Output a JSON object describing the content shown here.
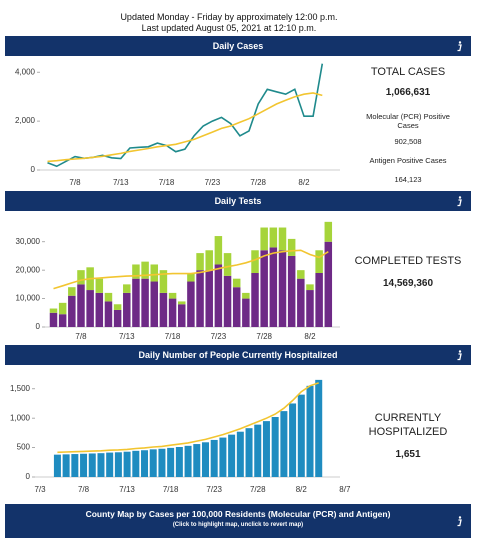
{
  "header": {
    "schedule": "Updated Monday - Friday by approximately 12:00 p.m.",
    "last_updated": "Last updated August 05, 2021 at 12:10 p.m."
  },
  "chart_data": [
    {
      "type": "line",
      "title": "Daily Cases",
      "categories": [
        null,
        null,
        null,
        "7/8",
        null,
        null,
        null,
        null,
        "7/13",
        null,
        null,
        null,
        null,
        "7/18",
        null,
        null,
        null,
        null,
        "7/23",
        null,
        null,
        null,
        null,
        "7/28",
        null,
        null,
        null,
        null,
        "8/2",
        null,
        null
      ],
      "series": [
        {
          "color": "#1f8a8c",
          "values": [
            300,
            150,
            350,
            550,
            480,
            520,
            600,
            500,
            470,
            900,
            930,
            950,
            1100,
            1000,
            750,
            850,
            1400,
            1800,
            2000,
            2150,
            1900,
            1400,
            1600,
            2700,
            3300,
            3200,
            3100,
            3300,
            2200,
            2200,
            4350
          ]
        },
        {
          "color": "#f2c530",
          "values": [
            350,
            380,
            420,
            450,
            480,
            520,
            560,
            620,
            680,
            760,
            820,
            880,
            950,
            1000,
            1050,
            1150,
            1250,
            1400,
            1550,
            1700,
            1800,
            1950,
            2100,
            2300,
            2500,
            2700,
            2850,
            3000,
            3100,
            3150,
            3050
          ]
        }
      ],
      "ylim": [
        0,
        4500
      ],
      "yticks": [
        0,
        {
          "value": 2000,
          "label": "2,000"
        },
        {
          "value": 4000,
          "label": "4,000"
        }
      ],
      "panel": {
        "heading": "TOTAL CASES",
        "total": "1,066,631",
        "items": [
          {
            "label": "Molecular (PCR) Positive Cases",
            "value": "902,508"
          },
          {
            "label": "Antigen Positive Cases",
            "value": "164,123"
          }
        ]
      }
    },
    {
      "type": "bar",
      "stacked": true,
      "title": "Daily Tests",
      "categories": [
        null,
        null,
        null,
        "7/8",
        null,
        null,
        null,
        null,
        "7/13",
        null,
        null,
        null,
        null,
        "7/18",
        null,
        null,
        null,
        null,
        "7/23",
        null,
        null,
        null,
        null,
        "7/28",
        null,
        null,
        null,
        null,
        "8/2",
        null,
        null
      ],
      "series": [
        {
          "type": "bar",
          "color": "#6e2a86",
          "values": [
            5000,
            4500,
            11000,
            15000,
            13000,
            12000,
            9000,
            6000,
            12000,
            17000,
            17000,
            16000,
            12000,
            10000,
            8000,
            16000,
            20000,
            20000,
            22000,
            18000,
            14000,
            10000,
            19000,
            27000,
            28000,
            27000,
            25000,
            17000,
            13000,
            19000,
            30000
          ]
        },
        {
          "type": "bar",
          "color": "#a6d43a",
          "values": [
            1500,
            4000,
            3000,
            5000,
            8000,
            5000,
            3000,
            2000,
            3000,
            5000,
            6000,
            6000,
            8000,
            2000,
            1000,
            3000,
            6000,
            7000,
            10000,
            8000,
            3000,
            2000,
            8000,
            8000,
            7000,
            8000,
            6000,
            3000,
            2000,
            8000,
            7000
          ]
        },
        {
          "type": "line",
          "color": "#f2c530",
          "values": [
            13500,
            14500,
            15500,
            16500,
            17000,
            17200,
            17500,
            17700,
            17900,
            18000,
            18200,
            18400,
            18600,
            18800,
            18800,
            18800,
            19200,
            19800,
            20500,
            21200,
            21800,
            22600,
            23600,
            25000,
            26000,
            26500,
            26800,
            27000,
            25500,
            24500,
            26500
          ]
        }
      ],
      "ylim": [
        0,
        38000
      ],
      "yticks": [
        0,
        {
          "value": 10000,
          "label": "10,000"
        },
        {
          "value": 20000,
          "label": "20,000"
        },
        {
          "value": 30000,
          "label": "30,000"
        }
      ],
      "panel": {
        "heading": "COMPLETED TESTS",
        "total": "14,569,360"
      }
    },
    {
      "type": "bar",
      "title": "Daily Number of People Currently Hospitalized",
      "categories": [
        "7/3",
        null,
        null,
        null,
        null,
        "7/8",
        null,
        null,
        null,
        null,
        "7/13",
        null,
        null,
        null,
        null,
        "7/18",
        null,
        null,
        null,
        null,
        "7/23",
        null,
        null,
        null,
        null,
        "7/28",
        null,
        null,
        null,
        null,
        "8/2",
        null,
        null,
        null,
        null,
        "8/7"
      ],
      "series": [
        {
          "type": "bar",
          "color": "#1f8cc0",
          "values": [
            null,
            null,
            380,
            385,
            390,
            395,
            400,
            405,
            415,
            420,
            430,
            445,
            455,
            470,
            480,
            495,
            510,
            530,
            560,
            590,
            630,
            670,
            720,
            770,
            830,
            890,
            950,
            1020,
            1120,
            1250,
            1400,
            1550,
            1651,
            null,
            null,
            null
          ]
        },
        {
          "type": "line",
          "color": "#f2c530",
          "values": [
            null,
            null,
            420,
            425,
            430,
            435,
            440,
            445,
            455,
            460,
            470,
            485,
            495,
            510,
            520,
            540,
            560,
            580,
            610,
            640,
            680,
            720,
            770,
            820,
            880,
            940,
            1000,
            1070,
            1170,
            1300,
            1450,
            1550,
            1600,
            null,
            null,
            null
          ]
        }
      ],
      "ylim": [
        0,
        1700
      ],
      "yticks": [
        0,
        500,
        {
          "value": 1000,
          "label": "1,000"
        },
        {
          "value": 1500,
          "label": "1,500"
        }
      ],
      "panel": {
        "heading": "CURRENTLY HOSPITALIZED",
        "total": "1,651"
      }
    }
  ],
  "map": {
    "title": "County Map by Cases per 100,000 Residents (Molecular (PCR) and Antigen)",
    "subtitle": "(Click to highlight map, unclick to revert map)"
  }
}
